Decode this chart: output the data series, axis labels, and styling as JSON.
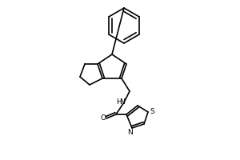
{
  "bg": "#ffffff",
  "lc": "#000000",
  "lw": 1.2,
  "atoms": {
    "N_label": "N",
    "H_label": "H",
    "O_label": "O",
    "S_label": "S",
    "N2_label": "N"
  }
}
